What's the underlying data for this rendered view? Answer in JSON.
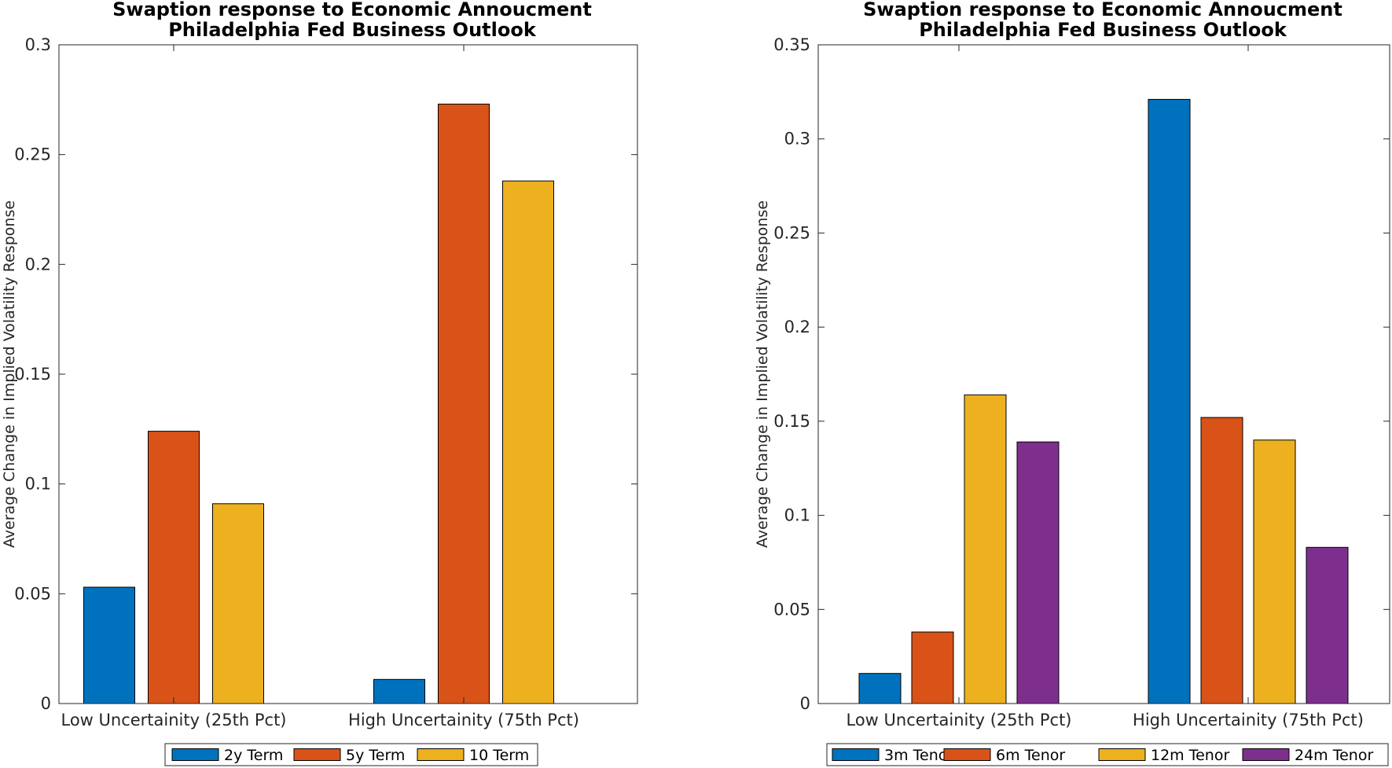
{
  "chart_data": [
    {
      "type": "bar",
      "title": [
        "Swaption response to Economic Annoucment",
        "Philadelphia Fed Business Outlook"
      ],
      "ylabel": "Average Change in Implied Volatility Response",
      "xlabel": "",
      "ylim": [
        0,
        0.3
      ],
      "yticks": [
        "0",
        "0.05",
        "0.1",
        "0.15",
        "0.2",
        "0.25",
        "0.3"
      ],
      "categories": [
        "Low Uncertainity (25th Pct)",
        "High Uncertainity (75th Pct)"
      ],
      "series": [
        {
          "name": "2y Term",
          "color": "#0072BD",
          "values": [
            0.053,
            0.011
          ]
        },
        {
          "name": "5y Term",
          "color": "#D95319",
          "values": [
            0.124,
            0.273
          ]
        },
        {
          "name": "10 Term",
          "color": "#EDB120",
          "values": [
            0.091,
            0.238
          ]
        }
      ],
      "grid": false,
      "legend_position": "bottom"
    },
    {
      "type": "bar",
      "title": [
        "Swaption response to Economic Annoucment",
        "Philadelphia Fed Business Outlook"
      ],
      "ylabel": "Average Change in Implied Volatility Response",
      "xlabel": "",
      "ylim": [
        0,
        0.35
      ],
      "yticks": [
        "0",
        "0.05",
        "0.1",
        "0.15",
        "0.2",
        "0.25",
        "0.3",
        "0.35"
      ],
      "categories": [
        "Low Uncertainity (25th Pct)",
        "High Uncertainity (75th Pct)"
      ],
      "series": [
        {
          "name": "3m Tenor",
          "color": "#0072BD",
          "values": [
            0.016,
            0.321
          ]
        },
        {
          "name": "6m Tenor",
          "color": "#D95319",
          "values": [
            0.038,
            0.152
          ]
        },
        {
          "name": "12m Tenor",
          "color": "#EDB120",
          "values": [
            0.164,
            0.14
          ]
        },
        {
          "name": "24m Tenor",
          "color": "#7E2F8E",
          "values": [
            0.139,
            0.083
          ]
        }
      ],
      "grid": false,
      "legend_position": "bottom"
    }
  ]
}
